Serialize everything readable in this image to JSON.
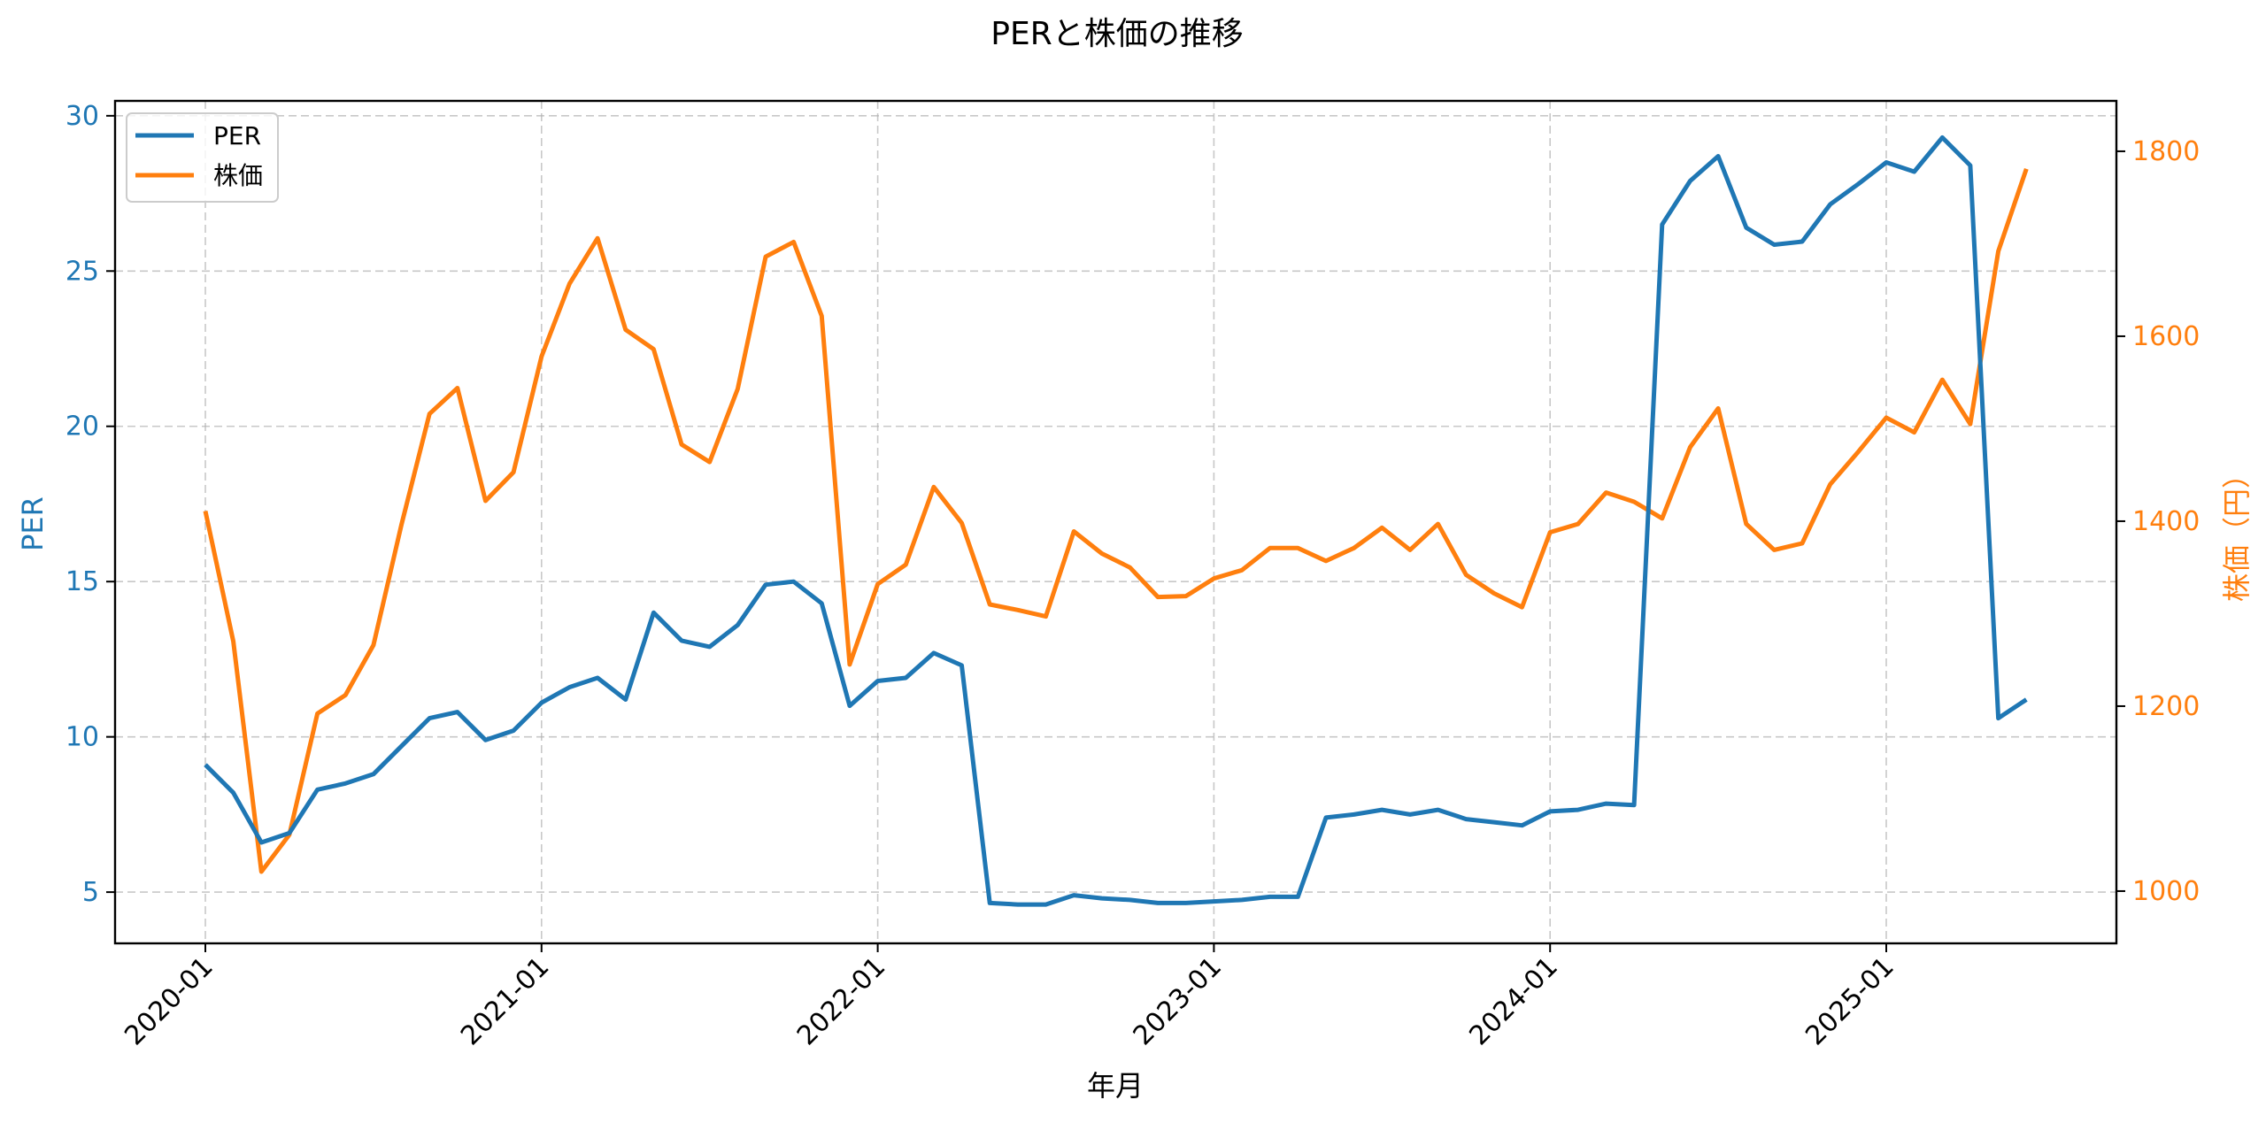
{
  "chart_data": {
    "type": "line",
    "title": "PERと株価の推移",
    "xlabel": "年月",
    "ylabel_left": "PER",
    "ylabel_right": "株価（円）",
    "x_ticks": [
      "2020-01",
      "2021-01",
      "2022-01",
      "2023-01",
      "2024-01",
      "2025-01"
    ],
    "y_ticks_left": [
      5,
      10,
      15,
      20,
      25,
      30
    ],
    "y_ticks_right": [
      1000,
      1200,
      1400,
      1600,
      1800
    ],
    "ylim_left": [
      3.35,
      30.48
    ],
    "ylim_right": [
      943.5,
      1854.5
    ],
    "grid": true,
    "grid_style": "dashed",
    "legend_position": "upper left",
    "colors": {
      "PER": "#1f77b4",
      "株価": "#ff7f0e"
    },
    "x": [
      "2020-01",
      "2020-02",
      "2020-03",
      "2020-04",
      "2020-05",
      "2020-06",
      "2020-07",
      "2020-08",
      "2020-09",
      "2020-10",
      "2020-11",
      "2020-12",
      "2021-01",
      "2021-02",
      "2021-03",
      "2021-04",
      "2021-05",
      "2021-06",
      "2021-07",
      "2021-08",
      "2021-09",
      "2021-10",
      "2021-11",
      "2021-12",
      "2022-01",
      "2022-02",
      "2022-03",
      "2022-04",
      "2022-05",
      "2022-06",
      "2022-07",
      "2022-08",
      "2022-09",
      "2022-10",
      "2022-11",
      "2022-12",
      "2023-01",
      "2023-02",
      "2023-03",
      "2023-04",
      "2023-05",
      "2023-06",
      "2023-07",
      "2023-08",
      "2023-09",
      "2023-10",
      "2023-11",
      "2023-12",
      "2024-01",
      "2024-02",
      "2024-03",
      "2024-04",
      "2024-05",
      "2024-06",
      "2024-07",
      "2024-08",
      "2024-09",
      "2024-10",
      "2024-11",
      "2024-12",
      "2025-01",
      "2025-02",
      "2025-03",
      "2025-04",
      "2025-05",
      "2025-06"
    ],
    "series": [
      {
        "name": "PER",
        "axis": "left",
        "values": [
          9.1,
          8.2,
          6.6,
          6.9,
          8.3,
          8.5,
          8.8,
          9.7,
          10.6,
          10.8,
          9.9,
          10.2,
          11.1,
          11.6,
          11.9,
          11.2,
          14.0,
          13.1,
          12.9,
          13.6,
          14.9,
          15.0,
          14.3,
          11.0,
          11.8,
          11.9,
          12.7,
          12.3,
          4.65,
          4.6,
          4.6,
          4.9,
          4.8,
          4.75,
          4.65,
          4.65,
          4.7,
          4.75,
          4.85,
          4.85,
          7.4,
          7.5,
          7.65,
          7.5,
          7.65,
          7.35,
          7.25,
          7.15,
          7.6,
          7.65,
          7.85,
          7.8,
          26.5,
          27.9,
          28.7,
          26.4,
          25.85,
          25.95,
          27.15,
          27.8,
          28.5,
          28.2,
          29.3,
          28.4,
          10.6,
          11.2
        ]
      },
      {
        "name": "株価",
        "axis": "right",
        "values": [
          1411,
          1270,
          1021,
          1061,
          1192,
          1212,
          1266,
          1396,
          1516,
          1544,
          1422,
          1453,
          1578,
          1657,
          1706,
          1607,
          1586,
          1483,
          1464,
          1543,
          1686,
          1702,
          1622,
          1245,
          1332,
          1353,
          1437,
          1398,
          1310,
          1304,
          1297,
          1389,
          1365,
          1350,
          1318,
          1319,
          1338,
          1347,
          1371,
          1371,
          1357,
          1371,
          1393,
          1369,
          1397,
          1342,
          1322,
          1307,
          1388,
          1397,
          1431,
          1421,
          1403,
          1480,
          1522,
          1397,
          1369,
          1376,
          1440,
          1475,
          1512,
          1496,
          1553,
          1505,
          1692,
          1781
        ]
      }
    ]
  },
  "legend": {
    "items": [
      {
        "label": "PER",
        "color": "#1f77b4"
      },
      {
        "label": "株価",
        "color": "#ff7f0e"
      }
    ]
  }
}
